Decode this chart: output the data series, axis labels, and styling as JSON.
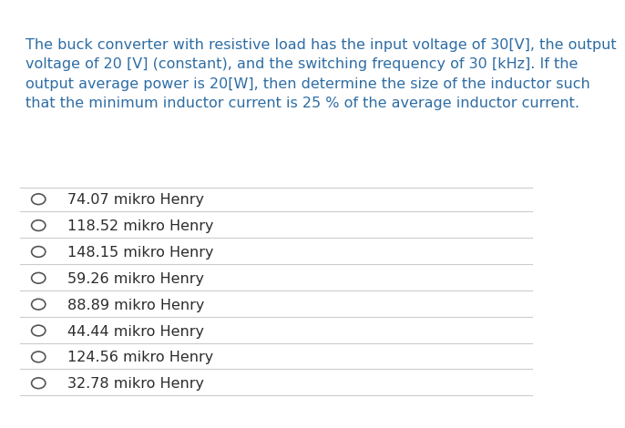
{
  "question_text": "The buck converter with resistive load has the input voltage of 30[V], the output\nvoltage of 20 [V] (constant), and the switching frequency of 30 [kHz]. If the\noutput average power is 20[W], then determine the size of the inductor such\nthat the minimum inductor current is 25 % of the average inductor current.",
  "options": [
    "74.07 mikro Henry",
    "118.52 mikro Henry",
    "148.15 mikro Henry",
    "59.26 mikro Henry",
    "88.89 mikro Henry",
    "44.44 mikro Henry",
    "124.56 mikro Henry",
    "32.78 mikro Henry"
  ],
  "question_color": "#2E6DA4",
  "option_text_color": "#2C2C2C",
  "background_color": "#FFFFFF",
  "line_color": "#CCCCCC",
  "circle_color": "#555555",
  "question_fontsize": 11.5,
  "option_fontsize": 11.5
}
